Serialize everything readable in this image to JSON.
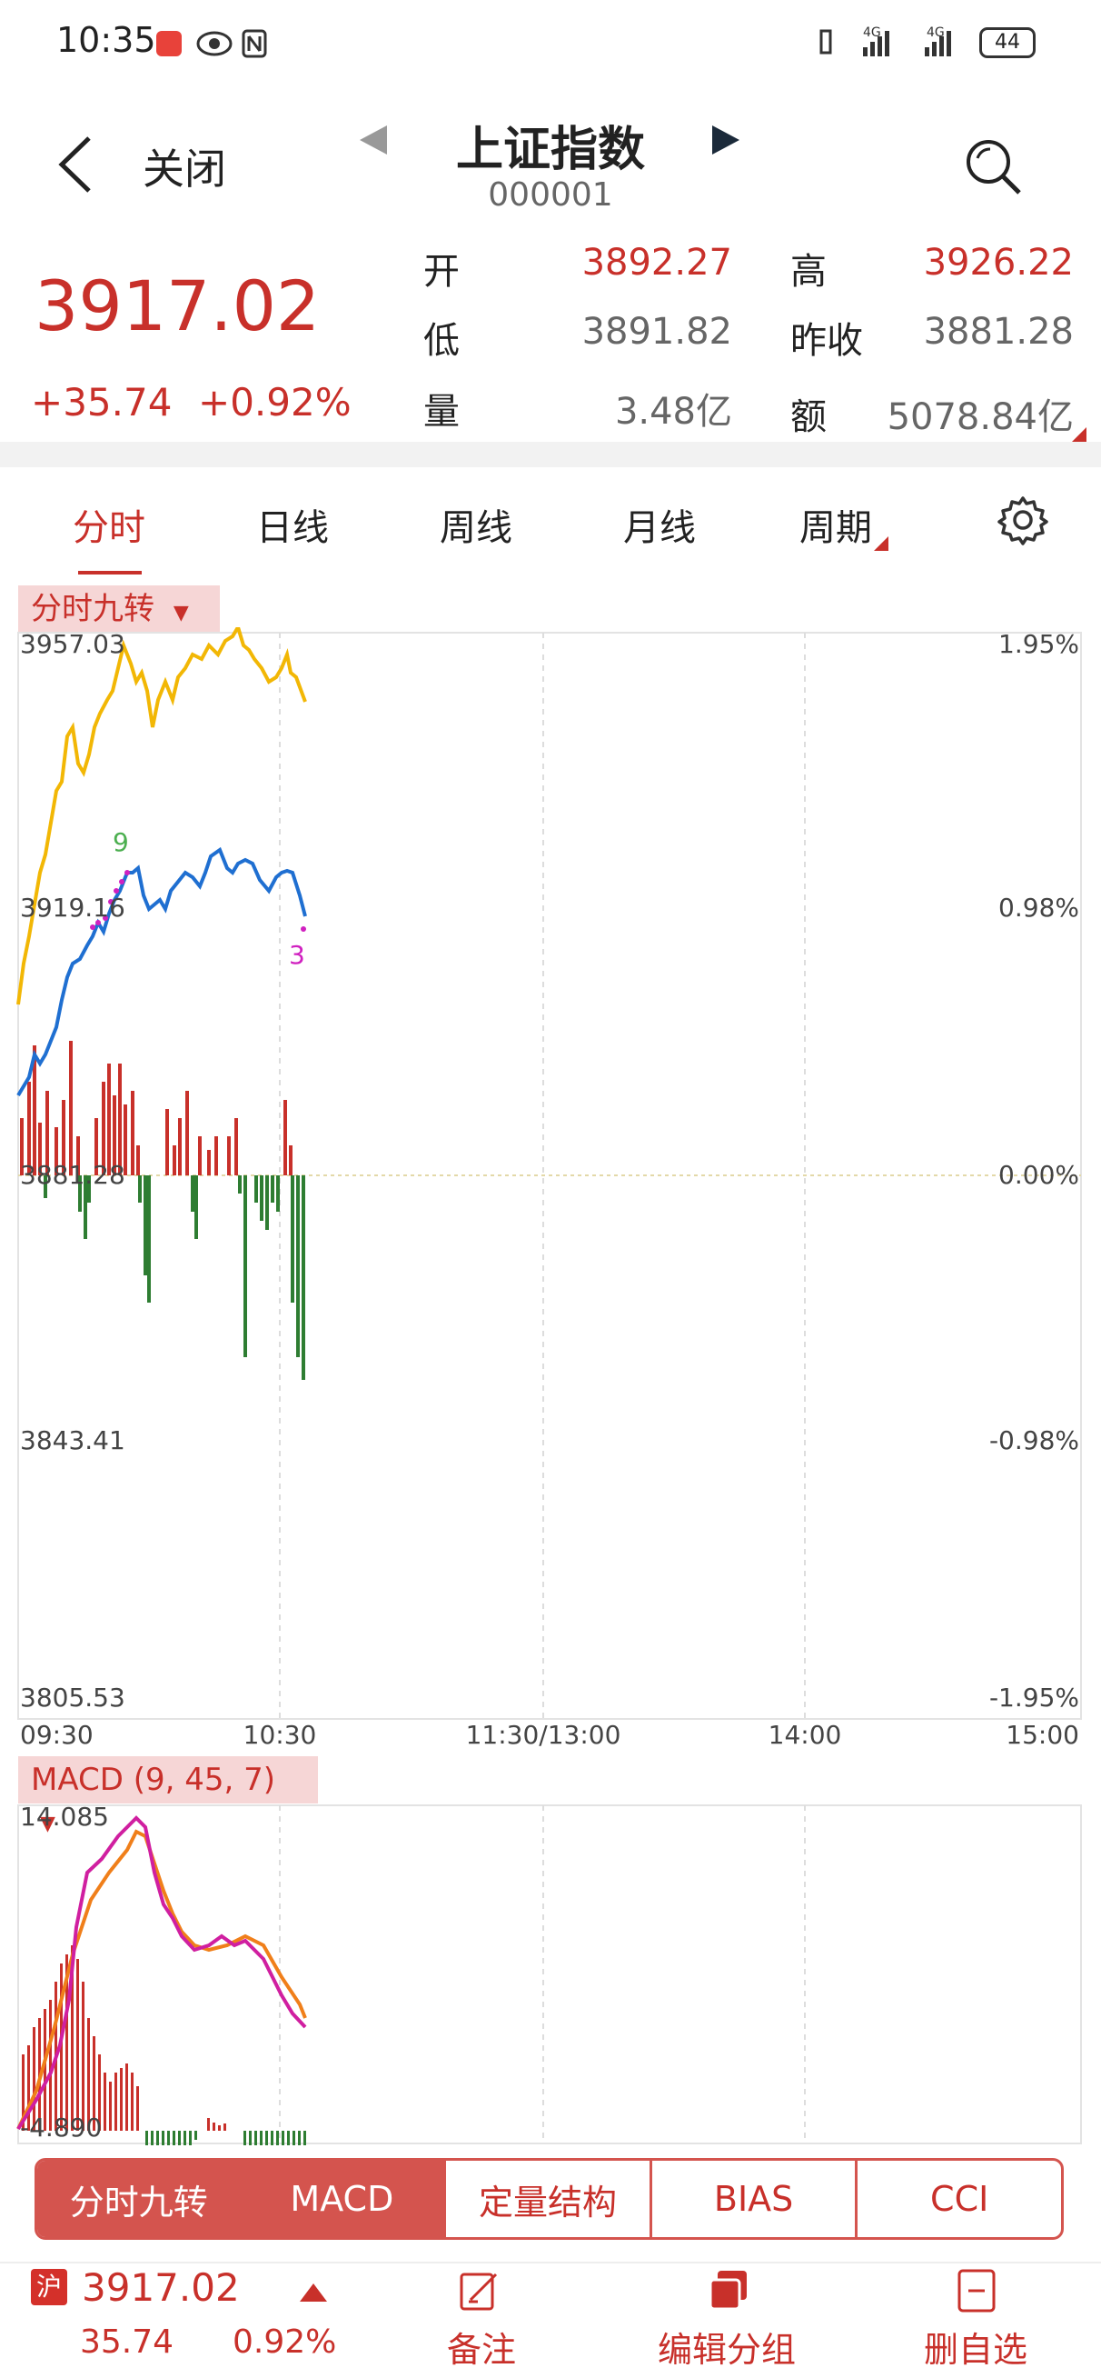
{
  "status_bar": {
    "time": "10:35",
    "battery": "44"
  },
  "header": {
    "close_label": "关闭",
    "title": "上证指数",
    "code": "000001"
  },
  "quote": {
    "price": "3917.02",
    "change": "+35.74",
    "change_pct": "+0.92%",
    "fields": [
      {
        "label": "开",
        "value": "3892.27",
        "color": "#c8302a"
      },
      {
        "label": "高",
        "value": "3926.22",
        "color": "#c8302a"
      },
      {
        "label": "低",
        "value": "3891.82",
        "color": "#666666"
      },
      {
        "label": "昨收",
        "value": "3881.28",
        "color": "#666666"
      },
      {
        "label": "量",
        "value": "3.48亿",
        "color": "#666666"
      },
      {
        "label": "额",
        "value": "5078.84亿",
        "color": "#666666"
      }
    ]
  },
  "tabs": {
    "intraday": "分时",
    "daily": "日线",
    "weekly": "周线",
    "monthly": "月线",
    "period": "周期"
  },
  "main_indicator": {
    "label": "分时九转"
  },
  "chart_axes": {
    "y_left": [
      "3957.03",
      "3919.16",
      "3881.28",
      "3843.41",
      "3805.53"
    ],
    "y_right": [
      "1.95%",
      "0.98%",
      "0.00%",
      "-0.98%",
      "-1.95%"
    ],
    "x": [
      "09:30",
      "10:30",
      "11:30/13:00",
      "14:00",
      "15:00"
    ],
    "markers": {
      "nine": "9",
      "three": "3"
    }
  },
  "macd": {
    "label": "MACD (9, 45, 7)",
    "max": "14.085",
    "min": "-4.890"
  },
  "indicator_tabs": [
    "分时九转",
    "MACD",
    "定量结构",
    "BIAS",
    "CCI"
  ],
  "bottom_bar": {
    "price": "3917.02",
    "change": "35.74",
    "change_pct": "0.92%",
    "badge": "沪",
    "actions": [
      "备注",
      "编辑分组",
      "删自选"
    ]
  },
  "colors": {
    "up": "#c8302a",
    "down": "#2e7d32",
    "avg_line": "#f2b705",
    "price_line": "#1f6fd1"
  }
}
